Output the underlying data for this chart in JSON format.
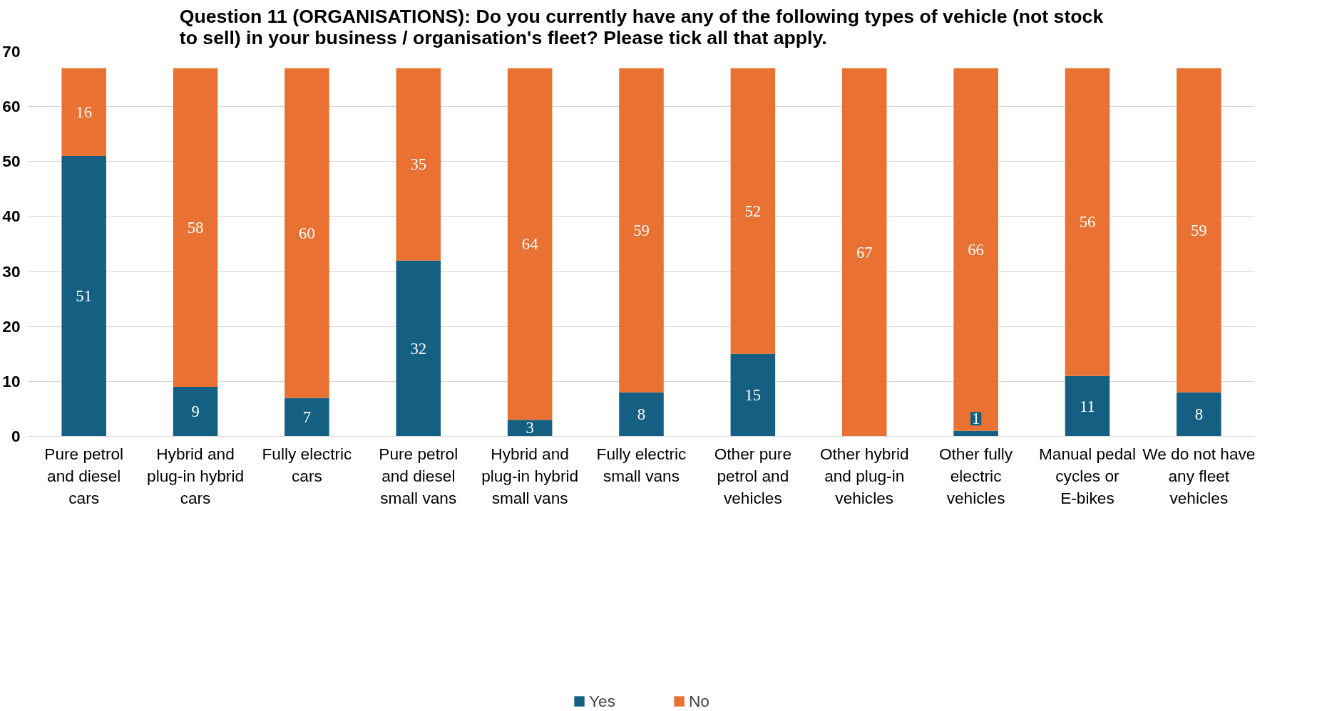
{
  "chart_data": {
    "type": "bar",
    "stacked": true,
    "title": "Question 11 (ORGANISATIONS): Do you currently have any of the following types of vehicle (not stock to sell) in your business / organisation's fleet? Please tick all that apply.",
    "categories": [
      "Pure petrol and diesel cars",
      "Hybrid and plug-in hybrid cars",
      "Fully electric cars",
      "Pure petrol and diesel small vans",
      "Hybrid and plug-in hybrid small vans",
      "Fully electric small vans",
      "Other pure petrol and vehicles",
      "Other hybrid and plug-in vehicles",
      "Other fully electric vehicles",
      "Manual pedal cycles or E-bikes",
      "We do not have any fleet vehicles"
    ],
    "series": [
      {
        "name": "Yes",
        "color": "#156082",
        "values": [
          51,
          9,
          7,
          32,
          3,
          8,
          15,
          0,
          1,
          11,
          8
        ],
        "value_labels": [
          "51",
          "9",
          "7",
          "32",
          "3",
          "8",
          "15",
          null,
          "1",
          "11",
          "8"
        ]
      },
      {
        "name": "No",
        "color": "#e97132",
        "values": [
          16,
          58,
          60,
          35,
          64,
          59,
          52,
          67,
          66,
          56,
          59
        ],
        "value_labels": [
          "16",
          "58",
          "60",
          "35",
          "64",
          "59",
          "52",
          "67",
          "66",
          "56",
          "59"
        ]
      }
    ],
    "ylim": [
      0,
      70
    ],
    "yticks": [
      0,
      10,
      20,
      30,
      40,
      50,
      60,
      70
    ],
    "grid": "y",
    "legend": "bottom"
  }
}
